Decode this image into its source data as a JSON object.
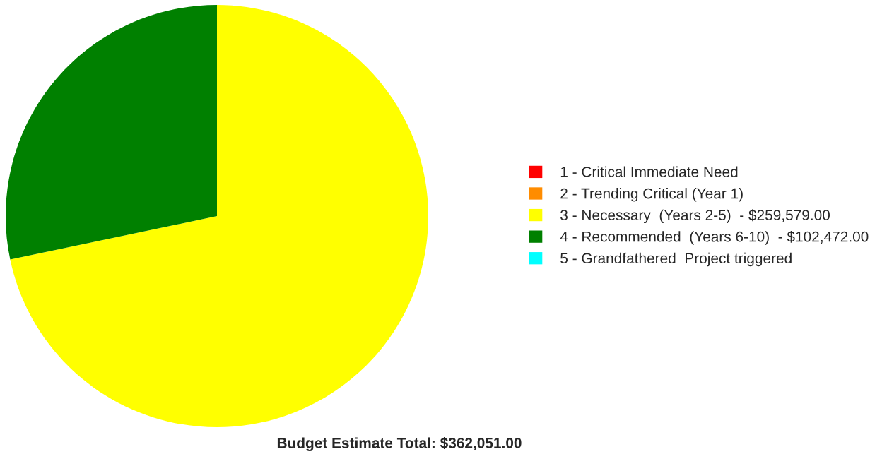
{
  "chart_data": {
    "type": "pie",
    "categories": [
      "1 - Critical Immediate Need",
      "2 - Trending Critical (Year 1)",
      "3 - Necessary  (Years 2-5)  - $259,579.00",
      "4 - Recommended  (Years 6-10)  - $102,472.00",
      "5 - Grandfathered  Project triggered"
    ],
    "values": [
      0,
      0,
      71.7,
      28.3,
      0
    ],
    "colors": [
      "#ff0000",
      "#ff8c00",
      "#ffff00",
      "#008000",
      "#00ffff"
    ],
    "legend": "right",
    "annotations": [
      "Budget Estimate Total: $362,051.00"
    ]
  }
}
